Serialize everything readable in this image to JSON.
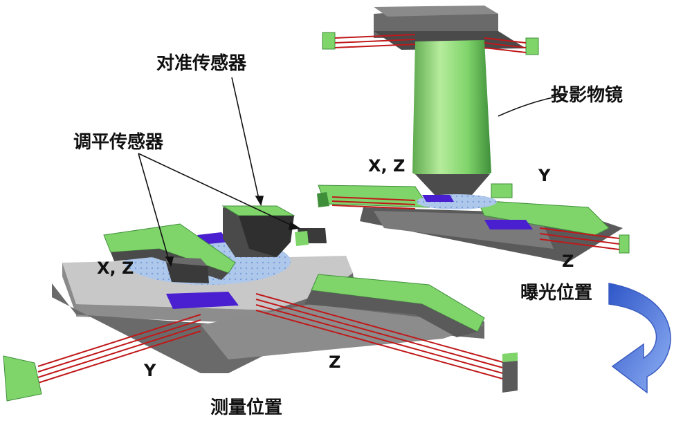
{
  "labels": {
    "alignment_sensor": "对准传感器",
    "leveling_sensor": "调平传感器",
    "projection_lens": "投影物镜",
    "exposure_position": "曝光位置",
    "measurement_position": "测量位置"
  },
  "axes": {
    "meas_xz": "X, Z",
    "meas_y": "Y",
    "meas_z": "Z",
    "exp_xz": "X, Z",
    "exp_y": "Y",
    "exp_z": "Z"
  },
  "colors": {
    "green": "#7fd46a",
    "dark_green": "#3f8f3a",
    "gray": "#6f6f6f",
    "dark_gray": "#3a3a3a",
    "light_gray": "#d8d8d8",
    "wafer": "#a9c4ea",
    "purple": "#4a1fd0",
    "beam": "#c0181a",
    "arrow": "#5a7fe0"
  }
}
